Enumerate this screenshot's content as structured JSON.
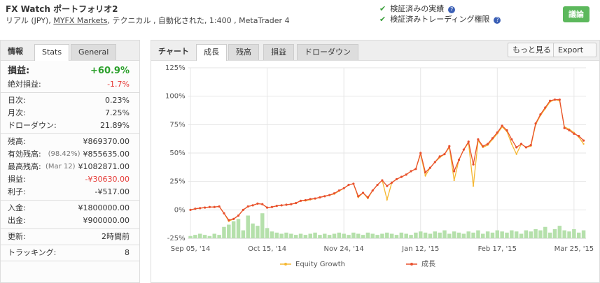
{
  "header": {
    "title": "FX Watch ポートフォリオ2",
    "subtitle": [
      "リアル (JPY), ",
      "MYFX Markets",
      ", テクニカル , 自動化された, 1:400 , MetaTrader 4"
    ],
    "verified": [
      "検証済みの実績",
      "検証済みトレーディング権限"
    ],
    "button": "議論"
  },
  "sidebar": {
    "tabs": [
      "情報",
      "Stats",
      "General"
    ],
    "groups": [
      [
        {
          "label": "損益:",
          "value": "+60.9%",
          "color": "#2ca02c"
        },
        {
          "label": "絶対損益:",
          "value": "-1.7%",
          "color": "#e53935"
        }
      ],
      [
        {
          "label": "日次:",
          "value": "0.23%"
        },
        {
          "label": "月次:",
          "value": "7.25%"
        },
        {
          "label": "ドローダウン:",
          "value": "21.89%"
        }
      ],
      [
        {
          "label": "残高:",
          "value": "¥869370.00"
        },
        {
          "label": "有効残高:",
          "note": "(98.42%)",
          "value": "¥855635.00"
        },
        {
          "label": "最高残高:",
          "note": "(Mar 12)",
          "value": "¥1082871.00"
        },
        {
          "label": "損益:",
          "value": "-¥30630.00",
          "color": "#e53935"
        },
        {
          "label": "利子:",
          "value": "-¥517.00"
        }
      ],
      [
        {
          "label": "入金:",
          "value": "¥1800000.00"
        },
        {
          "label": "出金:",
          "value": "¥900000.00"
        }
      ],
      [
        {
          "label": "更新:",
          "value": "2時間前"
        }
      ],
      [
        {
          "label": "トラッキング:",
          "value": 8
        }
      ]
    ]
  },
  "chart_panel": {
    "label": "チャート",
    "tabs": [
      "成長",
      "残高",
      "損益",
      "ドローダウン"
    ],
    "buttons": [
      "もっと見る",
      "Export"
    ]
  },
  "chart_data": {
    "type": "line",
    "categories": [
      "Sep 05, '14",
      null,
      null,
      null,
      null,
      null,
      null,
      null,
      null,
      null,
      null,
      null,
      null,
      null,
      null,
      null,
      "Oct 15, '14",
      null,
      null,
      null,
      null,
      null,
      null,
      null,
      null,
      null,
      null,
      null,
      null,
      null,
      null,
      null,
      "Nov 24, '14",
      null,
      null,
      null,
      null,
      null,
      null,
      null,
      null,
      null,
      null,
      null,
      null,
      null,
      null,
      null,
      "Jan 12, '15",
      null,
      null,
      null,
      null,
      null,
      null,
      null,
      null,
      null,
      null,
      null,
      null,
      null,
      null,
      null,
      "Feb 17, '15",
      null,
      null,
      null,
      null,
      null,
      null,
      null,
      null,
      null,
      null,
      null,
      null,
      null,
      null,
      null,
      "Mar 25, '15",
      null,
      null
    ],
    "ylim": [
      -25,
      125
    ],
    "yticks": [
      {
        "value": -25,
        "label": "-25%"
      },
      {
        "value": 0,
        "label": "0%"
      },
      {
        "value": 25,
        "label": "25%"
      },
      {
        "value": 50,
        "label": "50%"
      },
      {
        "value": 75,
        "label": "75%"
      },
      {
        "value": 100,
        "label": "100%"
      },
      {
        "value": 125,
        "label": "125%"
      }
    ],
    "grid": true,
    "legend": "bottom",
    "series": [
      {
        "name": "Equity Growth",
        "color": "#f5b731",
        "values": [
          0,
          1,
          1.5,
          2,
          2.5,
          2.5,
          3,
          -3,
          -10,
          -8,
          -5,
          0,
          3,
          4,
          5.5,
          5,
          2,
          2.5,
          3.5,
          4,
          4.5,
          5,
          6,
          8,
          8,
          9,
          10,
          11,
          12,
          13,
          14,
          16.5,
          19,
          22,
          23,
          11,
          15,
          10,
          17,
          22,
          26,
          9,
          24,
          27,
          29,
          31,
          34,
          36,
          49,
          30,
          37,
          42,
          46,
          49,
          55,
          26,
          44,
          53,
          59,
          21,
          61,
          55,
          57,
          62,
          67,
          73,
          69,
          58,
          49,
          58,
          55,
          56,
          75,
          83,
          89,
          95,
          97,
          96,
          73,
          71,
          68,
          64,
          58
        ]
      },
      {
        "name": "成長",
        "color": "#e8502e",
        "values": [
          0,
          1,
          1.5,
          2,
          2.5,
          2.5,
          3,
          -3,
          -9,
          -8,
          -5,
          0,
          3,
          4,
          5.5,
          5,
          2,
          2.5,
          3.5,
          4,
          4.5,
          5,
          6,
          8,
          8.5,
          9.5,
          10,
          11,
          12,
          13,
          14.5,
          17,
          19,
          22,
          23,
          12,
          15,
          11,
          17,
          22,
          26,
          21,
          24,
          27,
          29,
          31,
          34,
          36,
          50,
          33,
          37,
          42,
          47,
          49,
          56,
          34,
          44,
          53,
          60,
          40,
          62,
          56,
          58,
          63,
          68,
          74,
          70,
          62,
          55,
          58,
          55,
          57,
          76,
          84,
          90,
          96,
          97,
          97,
          72,
          70,
          67,
          65,
          61
        ]
      }
    ],
    "bars": {
      "color": "#b5e0ab",
      "values": [
        -23,
        -22,
        -21,
        -22,
        -23,
        -21,
        -22,
        -15,
        -13,
        -10,
        -8,
        -18,
        -5,
        -12,
        -14,
        -3,
        -16,
        -19,
        -20,
        -21,
        -20,
        -21,
        -22,
        -21,
        -22,
        -21,
        -20,
        -22,
        -21,
        -22,
        -21,
        -20,
        -21,
        -22,
        -20,
        -21,
        -22,
        -20,
        -21,
        -22,
        -21,
        -20,
        -21,
        -22,
        -20,
        -21,
        -22,
        -20,
        -19,
        -20,
        -21,
        -19,
        -20,
        -18,
        -21,
        -19,
        -20,
        -21,
        -19,
        -20,
        -18,
        -21,
        -19,
        -20,
        -18,
        -19,
        -20,
        -18,
        -19,
        -21,
        -18,
        -19,
        -17,
        -18,
        -15,
        -20,
        -17,
        -14,
        -18,
        -19,
        -17,
        -20,
        -18
      ]
    }
  }
}
